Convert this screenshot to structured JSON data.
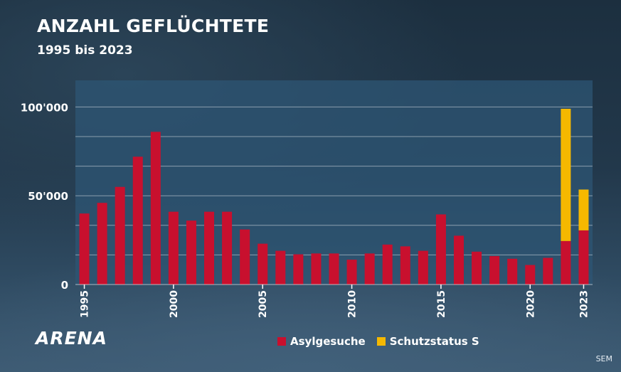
{
  "header": {
    "title": "ANZAHL GEFLÜCHTETE",
    "subtitle": "1995 bis 2023"
  },
  "logo": "ARENA",
  "source": "SEM",
  "colors": {
    "asyl": "#c8102e",
    "schutz": "#f5b800",
    "plot_bg": "#2e5574"
  },
  "chart_data": {
    "type": "bar",
    "stacked": true,
    "title": "ANZAHL GEFLÜCHTETE",
    "subtitle": "1995 bis 2023",
    "xlabel": "",
    "ylabel": "",
    "categories": [
      "1995",
      "1996",
      "1997",
      "1998",
      "1999",
      "2000",
      "2001",
      "2002",
      "2003",
      "2004",
      "2005",
      "2006",
      "2007",
      "2008",
      "2009",
      "2010",
      "2011",
      "2012",
      "2013",
      "2014",
      "2015",
      "2016",
      "2017",
      "2018",
      "2019",
      "2020",
      "2021",
      "2022",
      "2023"
    ],
    "x_tick_labels": [
      {
        "index": 0,
        "label": "1995"
      },
      {
        "index": 5,
        "label": "2000"
      },
      {
        "index": 10,
        "label": "2005"
      },
      {
        "index": 15,
        "label": "2010"
      },
      {
        "index": 20,
        "label": "2015"
      },
      {
        "index": 25,
        "label": "2020"
      },
      {
        "index": 28,
        "label": "2023"
      }
    ],
    "y_ticks": [
      {
        "value": 0,
        "label": "0"
      },
      {
        "value": 50000,
        "label": "50'000"
      },
      {
        "value": 100000,
        "label": "100'000"
      }
    ],
    "ylim": [
      0,
      115000
    ],
    "grid": true,
    "grid_step": 16667,
    "legend_position": "bottom",
    "series": [
      {
        "name": "Asylgesuche",
        "color": "#c8102e",
        "values": [
          40000,
          46000,
          55000,
          72000,
          86000,
          41000,
          36000,
          41000,
          41000,
          31000,
          23000,
          19000,
          17000,
          17500,
          17500,
          14000,
          17500,
          22500,
          21500,
          19000,
          39500,
          27500,
          18500,
          16000,
          14500,
          11000,
          15000,
          24500,
          30500
        ]
      },
      {
        "name": "Schutzstatus S",
        "color": "#f5b800",
        "values": [
          0,
          0,
          0,
          0,
          0,
          0,
          0,
          0,
          0,
          0,
          0,
          0,
          0,
          0,
          0,
          0,
          0,
          0,
          0,
          0,
          0,
          0,
          0,
          0,
          0,
          0,
          0,
          74500,
          23000
        ]
      }
    ]
  }
}
